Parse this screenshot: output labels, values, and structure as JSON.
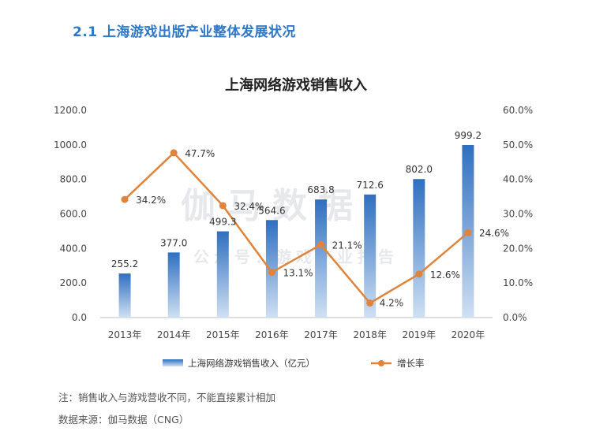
{
  "section": {
    "title": "2.1  上海游戏出版产业整体发展状况"
  },
  "watermark": {
    "line1": "伽马数据",
    "line2": "公众号：游戏产业报告"
  },
  "chart_data": {
    "type": "bar",
    "title": "上海网络游戏销售收入",
    "categories": [
      "2013年",
      "2014年",
      "2015年",
      "2016年",
      "2017年",
      "2018年",
      "2019年",
      "2020年"
    ],
    "series": [
      {
        "name": "上海网络游戏销售收入（亿元）",
        "type": "bar",
        "axis": "left",
        "values": [
          255.2,
          377.0,
          499.3,
          564.6,
          683.8,
          712.6,
          802.0,
          999.2
        ],
        "labels": [
          "255.2",
          "377.0",
          "499.3",
          "564.6",
          "683.8",
          "712.6",
          "802.0",
          "999.2"
        ]
      },
      {
        "name": "增长率",
        "type": "line",
        "axis": "right",
        "values": [
          34.2,
          47.7,
          32.4,
          13.1,
          21.1,
          4.2,
          12.6,
          24.6
        ],
        "labels": [
          "34.2%",
          "47.7%",
          "32.4%",
          "13.1%",
          "21.1%",
          "4.2%",
          "12.6%",
          "24.6%"
        ]
      }
    ],
    "y_left": {
      "min": 0,
      "max": 1200,
      "ticks": [
        "0.0",
        "200.0",
        "400.0",
        "600.0",
        "800.0",
        "1000.0",
        "1200.0"
      ]
    },
    "y_right": {
      "min": 0,
      "max": 60,
      "ticks": [
        "0.0%",
        "10.0%",
        "20.0%",
        "30.0%",
        "40.0%",
        "50.0%",
        "60.0%"
      ]
    },
    "legend_position": "bottom",
    "grid": false,
    "colors": {
      "bar_top": "#2f6fc0",
      "bar_bottom": "#cfe0f3",
      "line": "#e0843c"
    }
  },
  "notes": {
    "note": "注：销售收入与游戏营收不同，不能直接累计相加",
    "source": "数据来源：伽马数据（CNG）"
  }
}
